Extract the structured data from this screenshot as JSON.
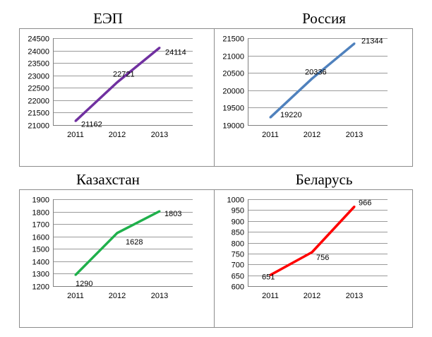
{
  "chart_data": [
    {
      "type": "line",
      "title": "ЕЭП",
      "categories": [
        "2011",
        "2012",
        "2013"
      ],
      "values": [
        21162,
        22721,
        24114
      ],
      "data_labels": [
        "21162",
        "22721",
        "24114"
      ],
      "ylim": [
        21000,
        24500
      ],
      "yticks": [
        "21000",
        "21500",
        "22000",
        "22500",
        "23000",
        "23500",
        "24000",
        "24500"
      ],
      "color": "#7030a0",
      "grid": true
    },
    {
      "type": "line",
      "title": "Россия",
      "categories": [
        "2011",
        "2012",
        "2013"
      ],
      "values": [
        19220,
        20336,
        21344
      ],
      "data_labels": [
        "19220",
        "20336",
        "21344"
      ],
      "ylim": [
        19000,
        21500
      ],
      "yticks": [
        "19000",
        "19500",
        "20000",
        "20500",
        "21000",
        "21500"
      ],
      "color": "#4f81bd",
      "grid": true
    },
    {
      "type": "line",
      "title": "Казахстан",
      "categories": [
        "2011",
        "2012",
        "2013"
      ],
      "values": [
        1290,
        1628,
        1803
      ],
      "data_labels": [
        "1290",
        "1628",
        "1803"
      ],
      "ylim": [
        1200,
        1900
      ],
      "yticks": [
        "1200",
        "1300",
        "1400",
        "1500",
        "1600",
        "1700",
        "1800",
        "1900"
      ],
      "color": "#1fb04b",
      "grid": true
    },
    {
      "type": "line",
      "title": "Беларусь",
      "categories": [
        "2011",
        "2012",
        "2013"
      ],
      "values": [
        651,
        756,
        966
      ],
      "data_labels": [
        "651",
        "756",
        "966"
      ],
      "ylim": [
        600,
        1000
      ],
      "yticks": [
        "600",
        "650",
        "700",
        "750",
        "800",
        "850",
        "900",
        "950",
        "1000"
      ],
      "color": "#ff0000",
      "grid": true
    }
  ]
}
